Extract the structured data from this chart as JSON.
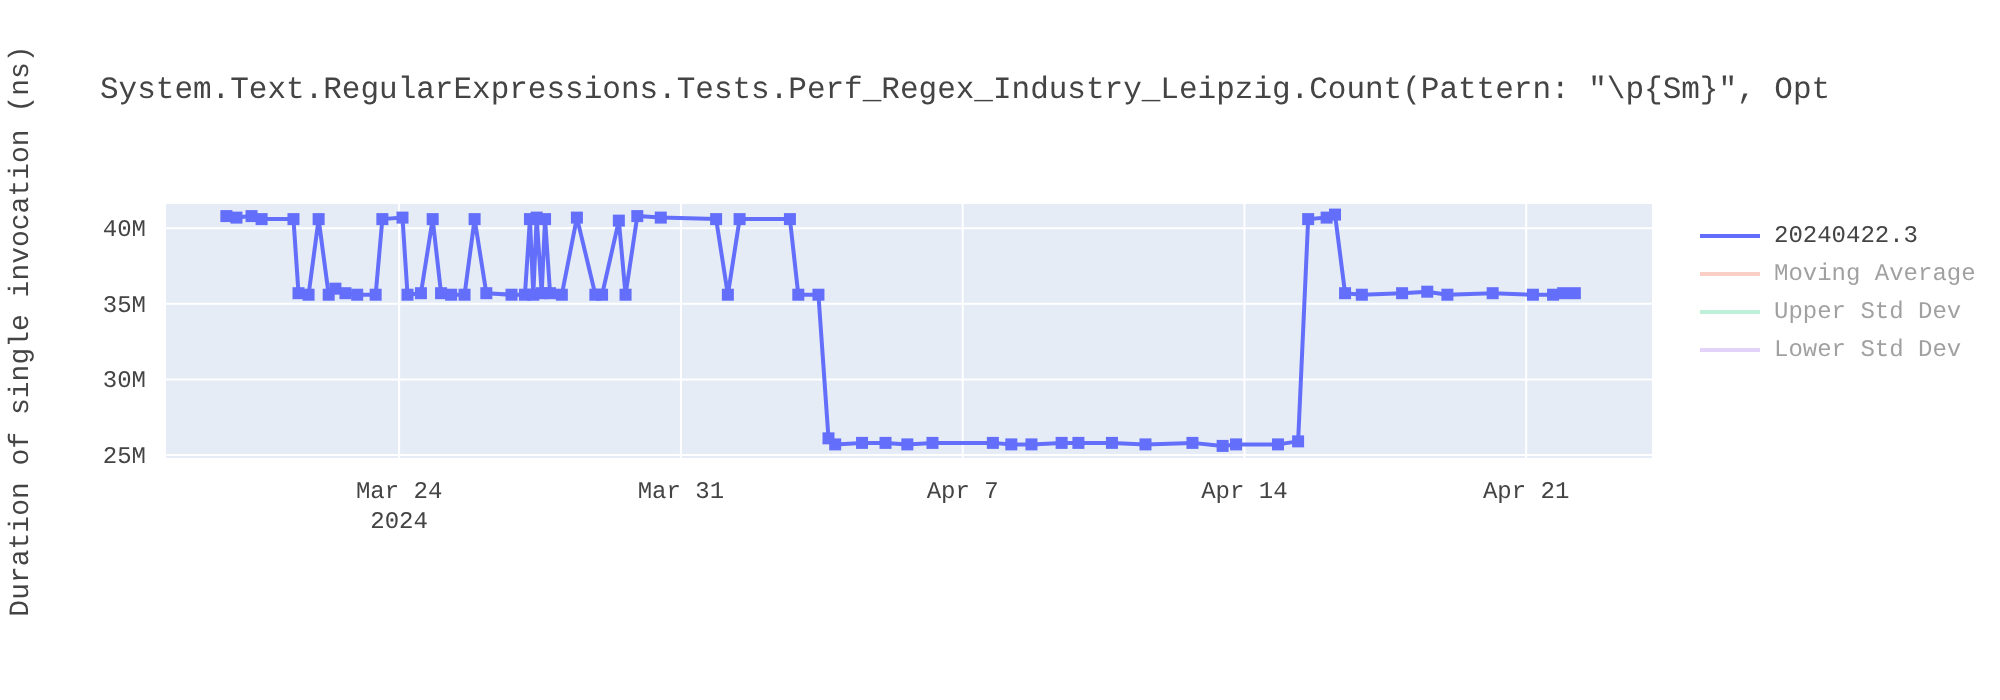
{
  "chart_data": {
    "type": "line",
    "title": "System.Text.RegularExpressions.Tests.Perf_Regex_Industry_Leipzig.Count(Pattern: \"\\p{Sm}\", Opt",
    "ylabel": "Duration of single invocation (ns)",
    "x": [
      "2024-03-19T17:00",
      "2024-03-19T23:00",
      "2024-03-20T08:00",
      "2024-03-20T14:00",
      "2024-03-21T09:00",
      "2024-03-21T12:00",
      "2024-03-21T18:00",
      "2024-03-22T00:00",
      "2024-03-22T06:00",
      "2024-03-22T10:00",
      "2024-03-22T16:00",
      "2024-03-22T23:00",
      "2024-03-23T10:00",
      "2024-03-23T14:00",
      "2024-03-24T02:00",
      "2024-03-24T05:00",
      "2024-03-24T13:00",
      "2024-03-24T20:00",
      "2024-03-25T01:00",
      "2024-03-25T07:00",
      "2024-03-25T15:00",
      "2024-03-25T21:00",
      "2024-03-26T04:00",
      "2024-03-26T19:00",
      "2024-03-27T03:00",
      "2024-03-27T06:00",
      "2024-03-27T08:00",
      "2024-03-27T10:00",
      "2024-03-27T13:00",
      "2024-03-27T15:00",
      "2024-03-27T18:00",
      "2024-03-28T01:00",
      "2024-03-28T10:00",
      "2024-03-28T21:00",
      "2024-03-29T01:00",
      "2024-03-29T11:00",
      "2024-03-29T15:00",
      "2024-03-29T22:00",
      "2024-03-30T12:00",
      "2024-03-31T21:00",
      "2024-04-01T04:00",
      "2024-04-01T11:00",
      "2024-04-02T17:00",
      "2024-04-02T22:00",
      "2024-04-03T10:00",
      "2024-04-03T16:00",
      "2024-04-03T20:00",
      "2024-04-04T12:00",
      "2024-04-05T02:00",
      "2024-04-05T15:00",
      "2024-04-06T06:00",
      "2024-04-07T18:00",
      "2024-04-08T05:00",
      "2024-04-08T17:00",
      "2024-04-09T11:00",
      "2024-04-09T21:00",
      "2024-04-10T17:00",
      "2024-04-11T13:00",
      "2024-04-12T17:00",
      "2024-04-13T11:00",
      "2024-04-13T19:00",
      "2024-04-14T20:00",
      "2024-04-15T08:00",
      "2024-04-15T14:00",
      "2024-04-16T01:00",
      "2024-04-16T06:00",
      "2024-04-16T12:00",
      "2024-04-16T22:00",
      "2024-04-17T22:00",
      "2024-04-18T13:00",
      "2024-04-19T01:00",
      "2024-04-20T04:00",
      "2024-04-21T04:00",
      "2024-04-21T16:00",
      "2024-04-21T22:00",
      "2024-04-22T05:00"
    ],
    "series": [
      {
        "name": "20240422.3",
        "color": "#636efa",
        "values": [
          40800000,
          40700000,
          40800000,
          40600000,
          40600000,
          35700000,
          35600000,
          40600000,
          35600000,
          36000000,
          35700000,
          35600000,
          35600000,
          40600000,
          40700000,
          35600000,
          35700000,
          40600000,
          35700000,
          35600000,
          35600000,
          40600000,
          35700000,
          35600000,
          35600000,
          40600000,
          35600000,
          40700000,
          35700000,
          40600000,
          35700000,
          35600000,
          40700000,
          35600000,
          35600000,
          40500000,
          35600000,
          40800000,
          40700000,
          40600000,
          35600000,
          40600000,
          40600000,
          35600000,
          35600000,
          26100000,
          25700000,
          25800000,
          25800000,
          25700000,
          25800000,
          25800000,
          25700000,
          25700000,
          25800000,
          25800000,
          25800000,
          25700000,
          25800000,
          25600000,
          25700000,
          25700000,
          25900000,
          40600000,
          40700000,
          40900000,
          35700000,
          35600000,
          35700000,
          35800000,
          35600000,
          35700000,
          35600000,
          35600000,
          35700000,
          35700000
        ]
      },
      {
        "name": "Moving Average",
        "color": "#f4a08e",
        "values": [
          null,
          null,
          null,
          null,
          null,
          null,
          null,
          null,
          null,
          null,
          null,
          null,
          null,
          null,
          null,
          null,
          null,
          null,
          null,
          null,
          null,
          null,
          null,
          null,
          null,
          null,
          null,
          null,
          null,
          null,
          null,
          null,
          null,
          null,
          null,
          null,
          null,
          null,
          null,
          null,
          null,
          null,
          null,
          null,
          null,
          null,
          null,
          null,
          null,
          null,
          null,
          null,
          null,
          null,
          null,
          null,
          null,
          null,
          null,
          null,
          null,
          null,
          null,
          null,
          null,
          null,
          null,
          null,
          null,
          null,
          null,
          null,
          null,
          null,
          null,
          null
        ]
      },
      {
        "name": "Upper Std Dev",
        "color": "#7ee0b4",
        "values": [
          null,
          null,
          null,
          null,
          null,
          null,
          null,
          null,
          null,
          null,
          null,
          null,
          null,
          null,
          null,
          null,
          null,
          null,
          null,
          null,
          null,
          null,
          null,
          null,
          null,
          null,
          null,
          null,
          null,
          null,
          null,
          null,
          null,
          null,
          null,
          null,
          null,
          null,
          null,
          null,
          null,
          null,
          null,
          null,
          null,
          null,
          null,
          null,
          null,
          null,
          null,
          null,
          null,
          null,
          null,
          null,
          null,
          null,
          null,
          null,
          null,
          null,
          null,
          null,
          null,
          null,
          null,
          null,
          null,
          null,
          null,
          null,
          null,
          null,
          null,
          null
        ]
      },
      {
        "name": "Lower Std Dev",
        "color": "#c8a8f8",
        "values": [
          null,
          null,
          null,
          null,
          null,
          null,
          null,
          null,
          null,
          null,
          null,
          null,
          null,
          null,
          null,
          null,
          null,
          null,
          null,
          null,
          null,
          null,
          null,
          null,
          null,
          null,
          null,
          null,
          null,
          null,
          null,
          null,
          null,
          null,
          null,
          null,
          null,
          null,
          null,
          null,
          null,
          null,
          null,
          null,
          null,
          null,
          null,
          null,
          null,
          null,
          null,
          null,
          null,
          null,
          null,
          null,
          null,
          null,
          null,
          null,
          null,
          null,
          null,
          null,
          null,
          null,
          null,
          null,
          null,
          null,
          null,
          null,
          null,
          null,
          null,
          null
        ]
      }
    ],
    "xlim": [
      "2024-03-18T05:00",
      "2024-04-24T03:00"
    ],
    "xticks": [
      {
        "value": "2024-03-24",
        "label": "Mar 24\n2024"
      },
      {
        "value": "2024-03-31",
        "label": "Mar 31"
      },
      {
        "value": "2024-04-07",
        "label": "Apr 7"
      },
      {
        "value": "2024-04-14",
        "label": "Apr 14"
      },
      {
        "value": "2024-04-21",
        "label": "Apr 21"
      }
    ],
    "ylim": [
      24800000,
      41600000
    ],
    "yticks": [
      {
        "value": 25000000,
        "label": "25M"
      },
      {
        "value": 30000000,
        "label": "30M"
      },
      {
        "value": 35000000,
        "label": "35M"
      },
      {
        "value": 40000000,
        "label": "40M"
      }
    ],
    "grid": true,
    "legend": "right",
    "marker": "square",
    "line_style": "solid"
  }
}
